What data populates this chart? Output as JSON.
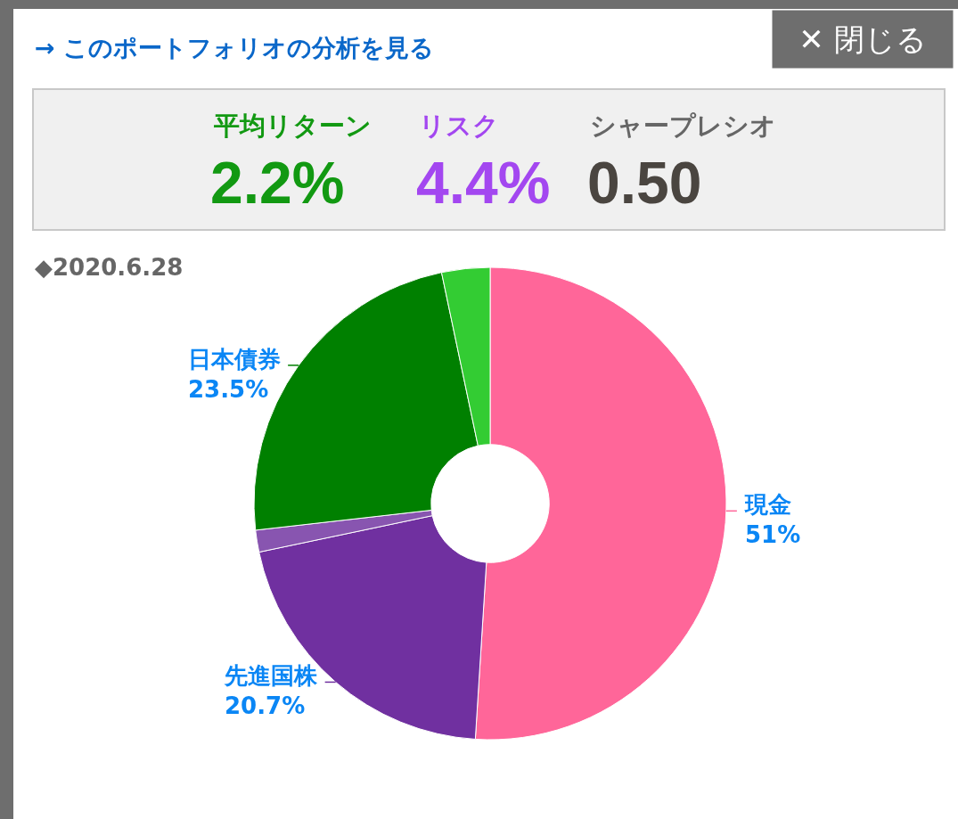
{
  "chart_data": [
    {
      "type": "other",
      "title": "→ このポートフォリオの分析を見る",
      "annotations": [
        "✕ 閉じる",
        "平均リターン",
        "2.2%",
        "リスク",
        "4.4%",
        "シャープレシオ",
        "0.50"
      ],
      "colors": [
        "#ffffff",
        "#129912",
        "#129912",
        "#a347f0",
        "#a347f0",
        "#666666",
        "#4a4540"
      ]
    },
    {
      "type": "donut",
      "title": "◆2020.6.28",
      "categories": [
        "現金",
        "先進国株",
        null,
        "日本債券",
        null
      ],
      "values": [
        51,
        20.7,
        1.5,
        23.5,
        3.3
      ],
      "colors": [
        "#ff6699",
        "#7030a0",
        "#8855b0",
        "#008000",
        "#33cc33"
      ],
      "value_labels": [
        "51%",
        "20.7%",
        null,
        "23.5%",
        null
      ]
    }
  ]
}
